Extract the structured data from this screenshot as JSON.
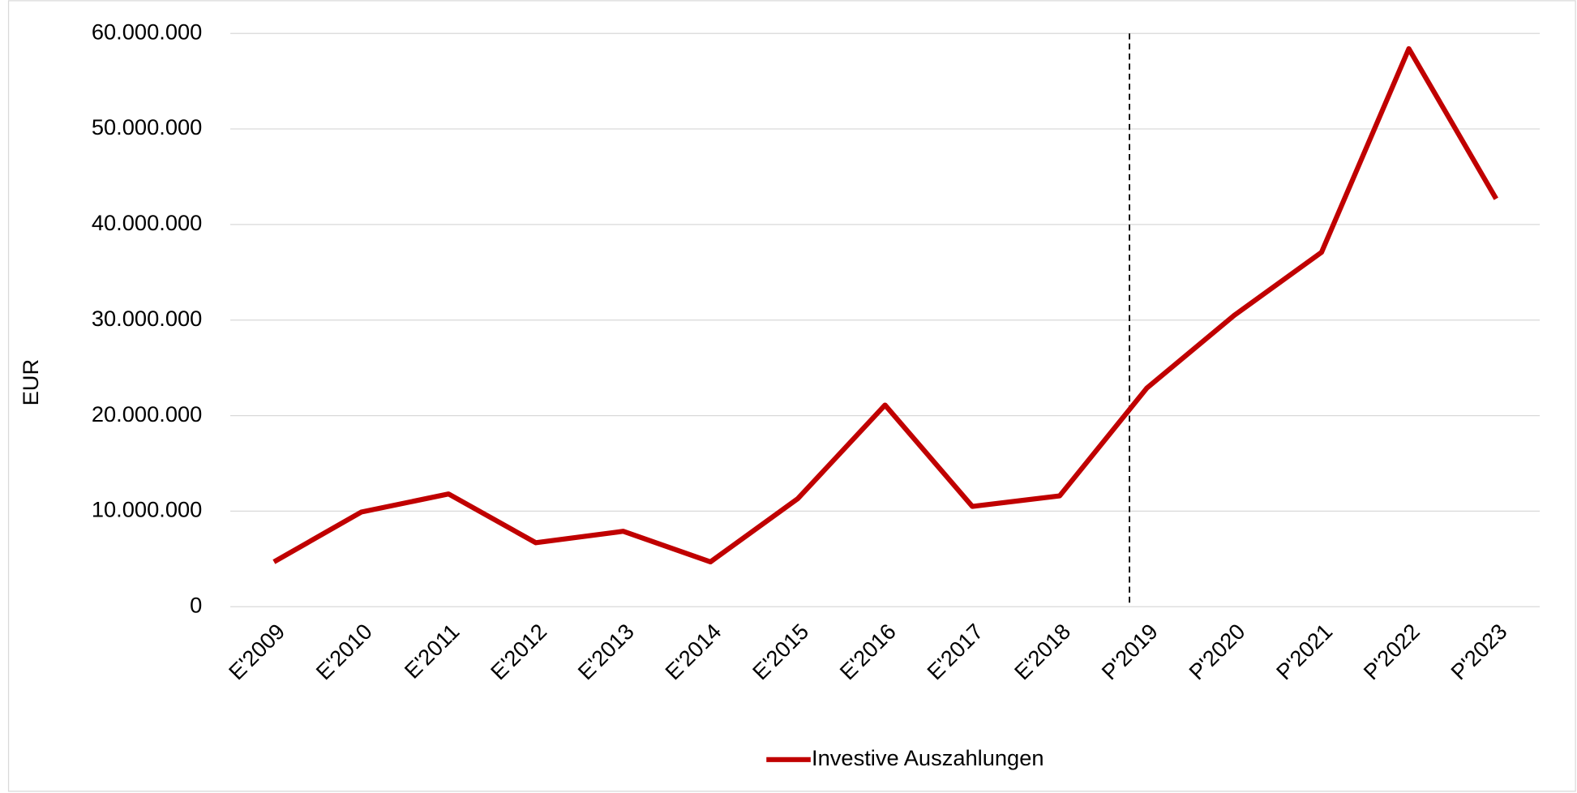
{
  "chart_data": {
    "type": "line",
    "y_label": "EUR",
    "categories": [
      "E'2009",
      "E'2010",
      "E'2011",
      "E'2012",
      "E'2013",
      "E'2014",
      "E'2015",
      "E'2016",
      "E'2017",
      "E'2018",
      "P'2019",
      "P'2020",
      "P'2021",
      "P'2022",
      "P'2023"
    ],
    "series": [
      {
        "name": "Investive Auszahlungen",
        "color": "#c00000",
        "values": [
          4700000,
          9900000,
          11800000,
          6700000,
          7900000,
          4700000,
          11300000,
          21100000,
          10500000,
          11600000,
          22900000,
          30500000,
          37100000,
          58400000,
          42700000
        ]
      }
    ],
    "ylim": [
      0,
      60000000
    ],
    "yticks": [
      0,
      {
        "value": 10000000,
        "label": "10.000.000"
      },
      {
        "value": 20000000,
        "label": "20.000.000"
      },
      {
        "value": 30000000,
        "label": "30.000.000"
      },
      {
        "value": 40000000,
        "label": "40.000.000"
      },
      {
        "value": 50000000,
        "label": "50.000.000"
      },
      {
        "value": 60000000,
        "label": "60.000.000"
      }
    ],
    "grid": true,
    "legend": "bottom"
  }
}
